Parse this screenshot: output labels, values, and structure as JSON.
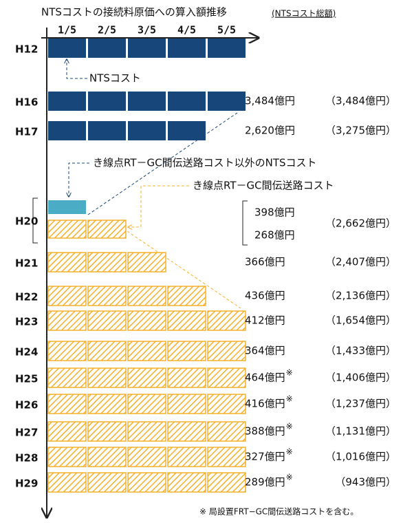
{
  "title": "NTSコストの接続料原価への算入額推移",
  "title_note": "(NTSコスト総額)",
  "columns": [
    "1/5",
    "2/5",
    "3/5",
    "4/5",
    "5/5"
  ],
  "annotations": [
    "NTSコスト",
    "き線点RT－GC間伝送路コスト以外のNTSコスト",
    "き線点RT－GC間伝送路コスト"
  ],
  "rows": [
    {
      "label": "H12",
      "bars": [
        {
          "blocks": 5,
          "color": "#17477a"
        }
      ]
    },
    {
      "label": "H16",
      "bars": [
        {
          "blocks": 5,
          "color": "#17477a",
          "amount": "3,484億円"
        }
      ],
      "total": "（3,484億円）"
    },
    {
      "label": "H17",
      "bars": [
        {
          "blocks": 4,
          "color": "#17477a",
          "amount": "2,620億円"
        }
      ],
      "total": "（3,275億円）"
    },
    {
      "label": "H20",
      "bars": [
        {
          "blocks": 1,
          "color": "#4bacc6",
          "amount": "398億円"
        },
        {
          "blocks": 2,
          "color": "#f5b02a",
          "hatched": true,
          "amount": "268億円"
        }
      ],
      "total": "（2,662億円）"
    },
    {
      "label": "H21",
      "bars": [
        {
          "blocks": 3,
          "color": "#f5b02a",
          "hatched": true,
          "amount": "366億円"
        }
      ],
      "total": "（2,407億円）"
    },
    {
      "label": "H22",
      "bars": [
        {
          "blocks": 4,
          "color": "#f5b02a",
          "hatched": true,
          "amount": "436億円"
        }
      ],
      "total": "（2,136億円）"
    },
    {
      "label": "H23",
      "bars": [
        {
          "blocks": 5,
          "color": "#f5b02a",
          "hatched": true,
          "amount": "412億円"
        }
      ],
      "total": "（1,654億円）"
    },
    {
      "label": "H24",
      "bars": [
        {
          "blocks": 5,
          "color": "#f5b02a",
          "hatched": true,
          "amount": "364億円"
        }
      ],
      "total": "（1,433億円）"
    },
    {
      "label": "H25",
      "bars": [
        {
          "blocks": 5,
          "color": "#f5b02a",
          "hatched": true,
          "amount": "464億円",
          "mark": "※"
        }
      ],
      "total": "（1,406億円）"
    },
    {
      "label": "H26",
      "bars": [
        {
          "blocks": 5,
          "color": "#f5b02a",
          "hatched": true,
          "amount": "416億円",
          "mark": "※"
        }
      ],
      "total": "（1,237億円）"
    },
    {
      "label": "H27",
      "bars": [
        {
          "blocks": 5,
          "color": "#f5b02a",
          "hatched": true,
          "amount": "388億円",
          "mark": "※"
        }
      ],
      "total": "（1,131億円）"
    },
    {
      "label": "H28",
      "bars": [
        {
          "blocks": 5,
          "color": "#f5b02a",
          "hatched": true,
          "amount": "327億円",
          "mark": "※"
        }
      ],
      "total": "（1,016億円）"
    },
    {
      "label": "H29",
      "bars": [
        {
          "blocks": 5,
          "color": "#f5b02a",
          "hatched": true,
          "amount": "289億円",
          "mark": "※"
        }
      ],
      "total": "（943億円）"
    }
  ],
  "footnote": "※ 局設置FRT−GC間伝送路コストを含む。"
}
